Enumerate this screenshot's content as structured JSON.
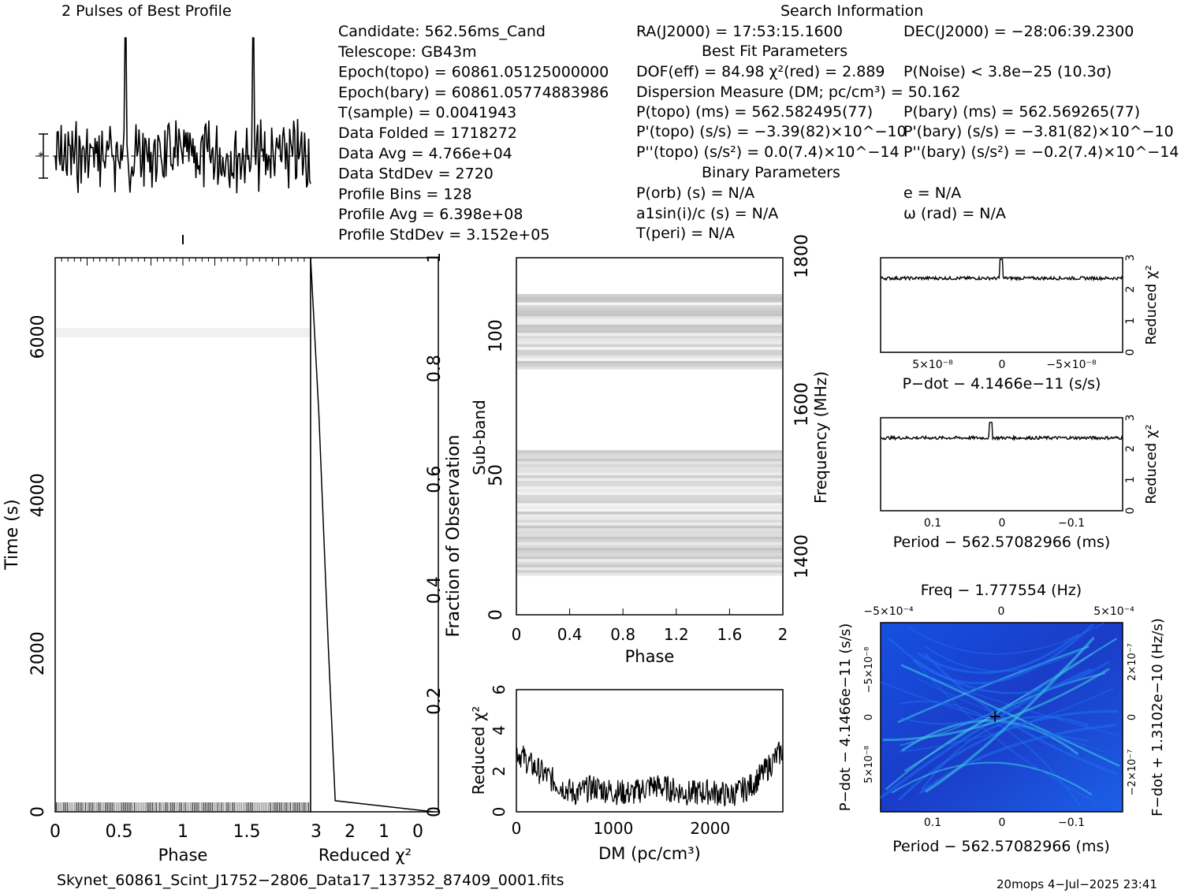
{
  "header": {
    "profile_title": "2 Pulses of Best Profile",
    "search_title": "Search Information",
    "best_fit_title": "Best Fit Parameters",
    "binary_title": "Binary Parameters"
  },
  "info_left": [
    "Candidate:  562.56ms_Cand",
    "Telescope:  GB43m",
    "Epoch(topo) = 60861.05125000000",
    "Epoch(bary) = 60861.05774883986",
    "T(sample)   =  0.0041943",
    "Data Folded  =  1718272",
    "Data Avg     =  4.766e+04",
    "Data StdDev  =  2720",
    "Profile Bins  =  128",
    "Profile Avg   =  6.398e+08",
    "Profile StdDev = 3.152e+05"
  ],
  "info_mid": [
    "RA(J2000) = 17:53:15.1600",
    "DOF(eff) = 84.98  χ²(red) = 2.889",
    "Dispersion Measure (DM; pc/cm³) = 50.162",
    "P(topo) (ms) =  562.582495(77)",
    "P'(topo) (s/s) = −3.39(82)×10^−10",
    "P''(topo) (s/s²) = 0.0(7.4)×10^−14",
    "P(orb) (s) = N/A",
    "a1sin(i)/c (s) = N/A",
    "T(peri) = N/A"
  ],
  "info_right": [
    "DEC(J2000) = −28:06:39.2300",
    "P(Noise) < 3.8e−25  (10.3σ)",
    "P(bary) (ms) =  562.569265(77)",
    "P'(bary) (s/s) = −3.81(82)×10^−10",
    "P''(bary) (s/s²) = −0.2(7.4)×10^−14",
    "e = N/A",
    "ω (rad) = N/A"
  ],
  "footer": {
    "filename": "Skynet_60861_Scint_J1752−2806_Data17_137352_87409_0001.fits",
    "stamp": "20mops   4−Jul−2025 23:41"
  },
  "chart_data": [
    {
      "type": "line",
      "title": "2 Pulses of Best Profile",
      "x_range": [
        0,
        2
      ],
      "peaks_at_phase": [
        0.55,
        1.55
      ]
    },
    {
      "type": "heatmap",
      "xlabel": "Phase",
      "ylabel": "Time (s)",
      "xlim": [
        0,
        2
      ],
      "ylim": [
        0,
        7000
      ],
      "xticks": [
        "0",
        "0.5",
        "1",
        "1.5"
      ],
      "yticks": [
        "0",
        "2000",
        "4000",
        "6000"
      ],
      "right_ylabel": "Fraction of Observation",
      "right_yticks": [
        "0",
        "0.2",
        "0.4",
        "0.6",
        "0.8",
        "1"
      ]
    },
    {
      "type": "line",
      "xlabel": "Reduced χ²",
      "xticks": [
        "3",
        "2",
        "1",
        "0"
      ],
      "x": [
        3.05,
        2.85,
        2.62,
        2.45,
        0.05
      ],
      "y": [
        1.0,
        0.72,
        0.3,
        0.02,
        0.0
      ]
    },
    {
      "type": "heatmap",
      "xlabel": "Phase",
      "ylabel": "Sub-band",
      "right_ylabel": "Frequency (MHz)",
      "xlim": [
        0,
        2
      ],
      "ylim": [
        0,
        128
      ],
      "xticks": [
        "0",
        "0.4",
        "0.8",
        "1.2",
        "1.6",
        "2"
      ],
      "yticks": [
        "0",
        "50",
        "100"
      ],
      "right_yticks": [
        "1400",
        "1600",
        "1800"
      ]
    },
    {
      "type": "line",
      "xlabel": "DM (pc/cm³)",
      "ylabel": "Reduced χ²",
      "xlim": [
        0,
        2750
      ],
      "ylim": [
        0,
        6
      ],
      "xticks": [
        "0",
        "1000",
        "2000"
      ],
      "yticks": [
        "0",
        "2",
        "4",
        "6"
      ],
      "x": [
        0,
        150,
        300,
        450,
        600,
        800,
        1000,
        1200,
        1400,
        1600,
        1800,
        2000,
        2200,
        2400,
        2550,
        2700,
        2750
      ],
      "y": [
        3.0,
        2.3,
        1.8,
        1.3,
        0.9,
        1.2,
        1.0,
        0.9,
        1.3,
        1.1,
        0.9,
        1.0,
        0.8,
        1.2,
        1.9,
        2.8,
        3.0
      ]
    },
    {
      "type": "line",
      "xlabel": "P−dot − 4.1466e−11 (s/s)",
      "ylabel": "Reduced χ²",
      "ylim": [
        0,
        3
      ],
      "yticks": [
        "0",
        "1",
        "2",
        "3"
      ],
      "xticks": [
        "5×10⁻⁸",
        "0",
        "−5×10⁻⁸"
      ],
      "baseline": 2.35,
      "peak": 2.95
    },
    {
      "type": "line",
      "xlabel": "Period − 562.57082966 (ms)",
      "ylabel": "Reduced χ²",
      "ylim": [
        0,
        3
      ],
      "yticks": [
        "0",
        "1",
        "2",
        "3"
      ],
      "xticks": [
        "0.1",
        "0",
        "−0.1"
      ],
      "baseline": 2.35,
      "peak": 2.85
    },
    {
      "type": "heatmap",
      "title": "Freq − 1.777554 (Hz)",
      "xlabel": "Period − 562.57082966 (ms)",
      "ylabel": "P−dot − 4.1466e−11 (s/s)",
      "right_ylabel": "F−dot + 1.3102e−10 (Hz/s)",
      "top_xticks": [
        "−5×10⁻⁴",
        "0",
        "5×10⁻⁴"
      ],
      "xticks": [
        "0.1",
        "0",
        "−0.1"
      ],
      "yticks": [
        "−5×10⁻⁸",
        "0",
        "5×10⁻⁸"
      ],
      "right_yticks": [
        "2×10⁻⁷",
        "0",
        "−2×10⁻⁷"
      ],
      "colors": [
        "#1030d0",
        "#1e6ff0",
        "#3ecfe8"
      ]
    }
  ]
}
